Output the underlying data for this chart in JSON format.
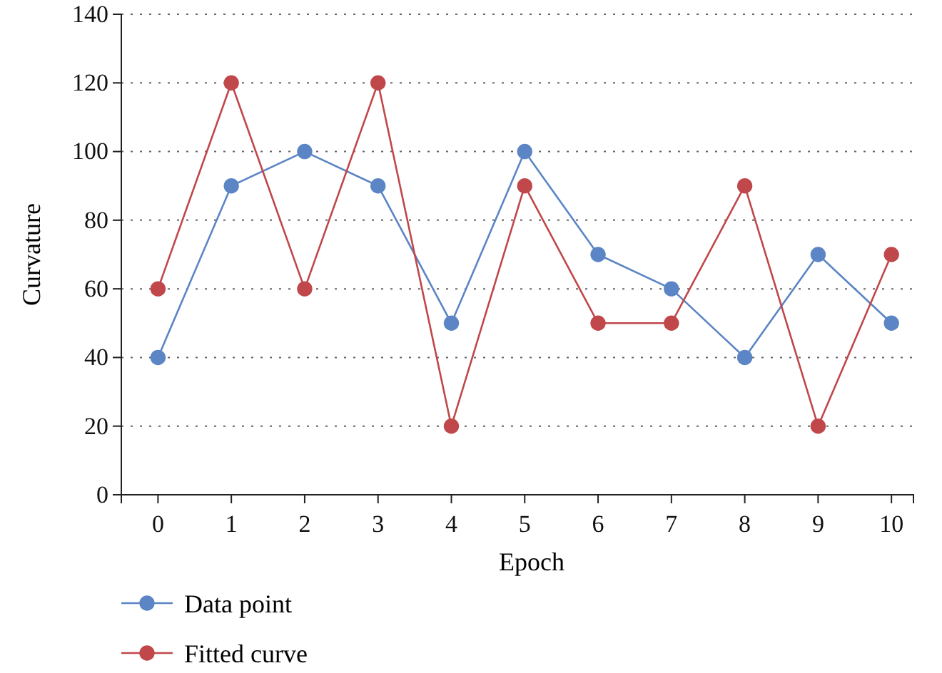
{
  "chart_data": {
    "type": "line",
    "xlabel": "Epoch",
    "ylabel": "Curvature",
    "x": [
      0,
      1,
      2,
      3,
      4,
      5,
      6,
      7,
      8,
      9,
      10
    ],
    "xlim": [
      -0.5,
      10.3
    ],
    "xticks": [
      0,
      1,
      2,
      3,
      4,
      5,
      6,
      7,
      8,
      9,
      10
    ],
    "ylim": [
      0,
      140
    ],
    "yticks": [
      0,
      20,
      40,
      60,
      80,
      100,
      120,
      140
    ],
    "grid": "y",
    "legend": "bottom left",
    "marker": "circle",
    "line_style": "solid",
    "series": [
      {
        "name": "Data point",
        "color": "#5b85c4",
        "values": [
          40,
          90,
          100,
          90,
          50,
          100,
          70,
          60,
          40,
          70,
          50
        ]
      },
      {
        "name": "Fitted curve",
        "color": "#c0474a",
        "values": [
          60,
          120,
          60,
          120,
          20,
          90,
          50,
          50,
          90,
          20,
          70
        ]
      }
    ]
  }
}
